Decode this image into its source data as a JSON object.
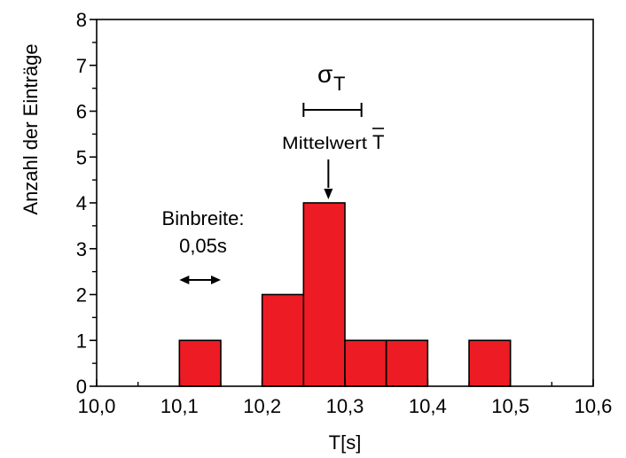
{
  "chart_data": {
    "type": "bar",
    "title": "",
    "xlabel": "T[s]",
    "ylabel": "Anzahl der Einträge",
    "xlim": [
      10.0,
      10.6
    ],
    "ylim": [
      0,
      8
    ],
    "bin_width": 0.05,
    "x_ticks": [
      "10,0",
      "10,1",
      "10,2",
      "10,3",
      "10,4",
      "10,5",
      "10,6"
    ],
    "y_ticks": [
      "0",
      "1",
      "2",
      "3",
      "4",
      "5",
      "6",
      "7",
      "8"
    ],
    "bins": [
      {
        "x0": 10.1,
        "x1": 10.15,
        "count": 1
      },
      {
        "x0": 10.2,
        "x1": 10.25,
        "count": 2
      },
      {
        "x0": 10.25,
        "x1": 10.3,
        "count": 4
      },
      {
        "x0": 10.3,
        "x1": 10.35,
        "count": 1
      },
      {
        "x0": 10.35,
        "x1": 10.4,
        "count": 1
      },
      {
        "x0": 10.45,
        "x1": 10.5,
        "count": 1
      }
    ],
    "bar_color": "#ed1c24",
    "grid": false,
    "annotations": {
      "binwidth_line1": "Binbreite:",
      "binwidth_line2": "0,05s",
      "mean_label": "Mittelwert",
      "mean_symbol": "T",
      "sigma_symbol": "σ",
      "sigma_subscript": "T",
      "mean_value": 10.28,
      "sigma_range": [
        10.25,
        10.32
      ]
    }
  }
}
